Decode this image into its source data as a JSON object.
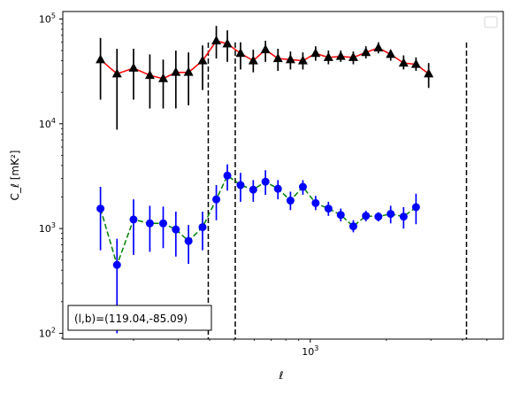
{
  "chart_data": {
    "type": "scatter",
    "xlabel": "ℓ",
    "ylabel": "C_ℓ  [mK²]",
    "xscale": "log",
    "yscale": "log",
    "xlim": [
      105,
      5800
    ],
    "ylim": [
      88,
      118000
    ],
    "x_ticks": [
      {
        "value": 1000,
        "base": "10",
        "exp": "3"
      }
    ],
    "y_ticks": [
      {
        "value": 100,
        "base": "10",
        "exp": "2"
      },
      {
        "value": 1000,
        "base": "10",
        "exp": "3"
      },
      {
        "value": 10000,
        "base": "10",
        "exp": "4"
      },
      {
        "value": 100000,
        "base": "10",
        "exp": "5"
      }
    ],
    "vlines": [
      395,
      505,
      4150
    ],
    "annotation": "(l,b)=(119.04,-85.09)",
    "series": [
      {
        "marker": "triangle",
        "marker_color": "#000000",
        "line_color": "#ff0000",
        "line_style": "solid",
        "points": [
          {
            "x": 148,
            "y": 41000,
            "lo": 17000,
            "hi": 66000
          },
          {
            "x": 172,
            "y": 30000,
            "lo": 8800,
            "hi": 52000
          },
          {
            "x": 200,
            "y": 34000,
            "lo": 17000,
            "hi": 52000
          },
          {
            "x": 232,
            "y": 29000,
            "lo": 14000,
            "hi": 46000
          },
          {
            "x": 262,
            "y": 27000,
            "lo": 14000,
            "hi": 41000
          },
          {
            "x": 294,
            "y": 31000,
            "lo": 14000,
            "hi": 50000
          },
          {
            "x": 330,
            "y": 31000,
            "lo": 15000,
            "hi": 48000
          },
          {
            "x": 375,
            "y": 40000,
            "lo": 21000,
            "hi": 56000
          },
          {
            "x": 425,
            "y": 62000,
            "lo": 42000,
            "hi": 86000
          },
          {
            "x": 470,
            "y": 58000,
            "lo": 39000,
            "hi": 78000
          },
          {
            "x": 530,
            "y": 47000,
            "lo": 33000,
            "hi": 60000
          },
          {
            "x": 595,
            "y": 40000,
            "lo": 31000,
            "hi": 51000
          },
          {
            "x": 665,
            "y": 51000,
            "lo": 39000,
            "hi": 62000
          },
          {
            "x": 745,
            "y": 42000,
            "lo": 32000,
            "hi": 52000
          },
          {
            "x": 835,
            "y": 41000,
            "lo": 33000,
            "hi": 49000
          },
          {
            "x": 935,
            "y": 40000,
            "lo": 33000,
            "hi": 48000
          },
          {
            "x": 1050,
            "y": 47000,
            "lo": 40000,
            "hi": 55000
          },
          {
            "x": 1180,
            "y": 43000,
            "lo": 37000,
            "hi": 50000
          },
          {
            "x": 1320,
            "y": 44000,
            "lo": 39000,
            "hi": 50000
          },
          {
            "x": 1480,
            "y": 43000,
            "lo": 37000,
            "hi": 49000
          },
          {
            "x": 1660,
            "y": 48000,
            "lo": 42000,
            "hi": 55000
          },
          {
            "x": 1860,
            "y": 53000,
            "lo": 47000,
            "hi": 60000
          },
          {
            "x": 2080,
            "y": 46000,
            "lo": 40000,
            "hi": 51000
          },
          {
            "x": 2340,
            "y": 38000,
            "lo": 33000,
            "hi": 45000
          },
          {
            "x": 2620,
            "y": 37000,
            "lo": 32000,
            "hi": 43000
          },
          {
            "x": 2940,
            "y": 30000,
            "lo": 22000,
            "hi": 38000
          }
        ]
      },
      {
        "marker": "circle",
        "marker_color": "#0000ff",
        "line_color": "#008000",
        "line_style": "dashed",
        "points": [
          {
            "x": 148,
            "y": 1550,
            "lo": 620,
            "hi": 2500
          },
          {
            "x": 172,
            "y": 450,
            "lo": 100,
            "hi": 800
          },
          {
            "x": 200,
            "y": 1220,
            "lo": 560,
            "hi": 1900
          },
          {
            "x": 232,
            "y": 1120,
            "lo": 600,
            "hi": 1650
          },
          {
            "x": 262,
            "y": 1120,
            "lo": 650,
            "hi": 1620
          },
          {
            "x": 294,
            "y": 980,
            "lo": 540,
            "hi": 1450
          },
          {
            "x": 330,
            "y": 760,
            "lo": 460,
            "hi": 1080
          },
          {
            "x": 375,
            "y": 1030,
            "lo": 620,
            "hi": 1450
          },
          {
            "x": 425,
            "y": 1900,
            "lo": 1200,
            "hi": 2600
          },
          {
            "x": 470,
            "y": 3200,
            "lo": 2300,
            "hi": 4100
          },
          {
            "x": 530,
            "y": 2600,
            "lo": 1800,
            "hi": 3400
          },
          {
            "x": 595,
            "y": 2350,
            "lo": 1800,
            "hi": 2900
          },
          {
            "x": 665,
            "y": 2800,
            "lo": 2100,
            "hi": 3600
          },
          {
            "x": 745,
            "y": 2400,
            "lo": 1900,
            "hi": 2900
          },
          {
            "x": 835,
            "y": 1850,
            "lo": 1500,
            "hi": 2250
          },
          {
            "x": 935,
            "y": 2500,
            "lo": 2100,
            "hi": 2900
          },
          {
            "x": 1050,
            "y": 1750,
            "lo": 1500,
            "hi": 2050
          },
          {
            "x": 1180,
            "y": 1550,
            "lo": 1320,
            "hi": 1800
          },
          {
            "x": 1320,
            "y": 1350,
            "lo": 1170,
            "hi": 1550
          },
          {
            "x": 1480,
            "y": 1050,
            "lo": 920,
            "hi": 1200
          },
          {
            "x": 1660,
            "y": 1320,
            "lo": 1170,
            "hi": 1480
          },
          {
            "x": 1860,
            "y": 1300,
            "lo": 1170,
            "hi": 1430
          },
          {
            "x": 2080,
            "y": 1380,
            "lo": 1120,
            "hi": 1650
          },
          {
            "x": 2340,
            "y": 1300,
            "lo": 1000,
            "hi": 1600
          },
          {
            "x": 2620,
            "y": 1600,
            "lo": 1100,
            "hi": 2150
          }
        ]
      }
    ]
  }
}
